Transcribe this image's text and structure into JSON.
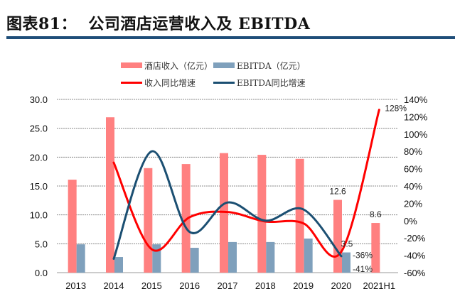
{
  "header": {
    "title": "图表81：  公司酒店运营收入及 EBITDA"
  },
  "colors": {
    "revenue_bar": "#FF8080",
    "ebitda_bar": "#7FA0BC",
    "revenue_growth_line": "#FF0000",
    "ebitda_growth_line": "#1B4F72",
    "title_rule": "#1F4E79",
    "grid": "#888888"
  },
  "chart_data": {
    "type": "bar+line",
    "categories": [
      "2013",
      "2014",
      "2015",
      "2016",
      "2017",
      "2018",
      "2019",
      "2020",
      "2021H1"
    ],
    "left_axis": {
      "ylim": [
        0,
        30
      ],
      "ticks": [
        "0.0",
        "5.0",
        "10.0",
        "15.0",
        "20.0",
        "25.0",
        "30.0"
      ]
    },
    "right_axis": {
      "ylim": [
        -60,
        140
      ],
      "ticks": [
        "-60%",
        "-40%",
        "-20%",
        "0%",
        "20%",
        "40%",
        "60%",
        "80%",
        "100%",
        "120%",
        "140%"
      ]
    },
    "grid": true,
    "legend_placement": "top",
    "series": [
      {
        "name": "酒店收入（亿元）",
        "kind": "bar",
        "axis": "left",
        "values": [
          16.1,
          26.9,
          18.1,
          18.8,
          20.7,
          20.4,
          19.7,
          12.6,
          8.6
        ]
      },
      {
        "name": "EBITDA（亿元）",
        "kind": "bar",
        "axis": "left",
        "values": [
          4.9,
          2.7,
          4.9,
          4.3,
          5.3,
          5.3,
          5.9,
          3.5,
          null
        ]
      },
      {
        "name": "收入同比增速",
        "kind": "line",
        "axis": "right",
        "values": [
          null,
          67,
          -33,
          4,
          10,
          -1,
          -3,
          -36,
          128
        ]
      },
      {
        "name": "EBITDA同比增速",
        "kind": "line",
        "axis": "right",
        "values": [
          null,
          -44,
          80,
          -13,
          21,
          0,
          13,
          -41,
          null
        ]
      }
    ],
    "annotations": [
      {
        "text": "12.6",
        "category": "2020",
        "series": "酒店收入（亿元）"
      },
      {
        "text": "8.6",
        "category": "2021H1",
        "series": "酒店收入（亿元）"
      },
      {
        "text": "3.5",
        "category": "2020",
        "series": "EBITDA（亿元）"
      },
      {
        "text": "-36%",
        "category": "2020",
        "series": "收入同比增速"
      },
      {
        "text": "-41%",
        "category": "2020",
        "series": "EBITDA同比增速"
      },
      {
        "text": "128%",
        "category": "2021H1",
        "series": "收入同比增速"
      }
    ]
  }
}
